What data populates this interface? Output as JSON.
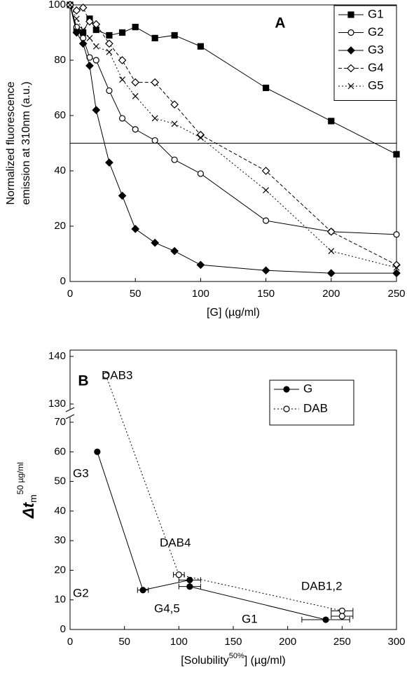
{
  "chart_data": [
    {
      "type": "line",
      "title": "A",
      "ylabel": [
        "Normalized fluorescence",
        "emission at 310nm (a.u.)"
      ],
      "xlabel": "[G] (µg/ml)",
      "x": [
        0,
        5,
        10,
        15,
        20,
        30,
        40,
        50,
        65,
        80,
        100,
        150,
        200,
        250
      ],
      "series": [
        {
          "name": "G1",
          "color": "#000000",
          "marker": "square",
          "filled": true,
          "dash": "solid",
          "values": [
            100,
            91,
            90,
            95,
            91,
            89,
            90,
            92,
            88,
            89,
            85,
            70,
            58,
            46
          ]
        },
        {
          "name": "G2",
          "color": "#000000",
          "marker": "circle",
          "filled": false,
          "dash": "solid",
          "values": [
            100,
            92,
            88,
            81,
            80,
            69,
            59,
            55,
            51,
            44,
            39,
            22,
            18,
            17
          ]
        },
        {
          "name": "G3",
          "color": "#000000",
          "marker": "diamond",
          "filled": true,
          "dash": "solid",
          "values": [
            100,
            90,
            86,
            78,
            62,
            43,
            31,
            19,
            14,
            11,
            6,
            4,
            3,
            3
          ]
        },
        {
          "name": "G4",
          "color": "#000000",
          "marker": "diamond",
          "filled": false,
          "dash": "dashed",
          "values": [
            100,
            98,
            99,
            94,
            93,
            86,
            80,
            72,
            72,
            64,
            53,
            40,
            18,
            6
          ]
        },
        {
          "name": "G5",
          "color": "#000000",
          "marker": "x",
          "filled": false,
          "dash": "dotted",
          "values": [
            100,
            95,
            91,
            88,
            85,
            83,
            73,
            67,
            59,
            57,
            52,
            33,
            11,
            5
          ]
        }
      ],
      "hline": 50,
      "xlim": [
        0,
        250
      ],
      "xticks": [
        0,
        50,
        100,
        150,
        200,
        250
      ],
      "ylim": [
        0,
        100
      ],
      "yticks": [
        0,
        20,
        40,
        60,
        80,
        100
      ],
      "legend": "upper right"
    },
    {
      "type": "line",
      "title": "B",
      "ylabel": [
        "Δt",
        "m",
        "50 µg/ml"
      ],
      "xlabel": [
        "[Solubility",
        "50%",
        "] (µg/ml)"
      ],
      "series": [
        {
          "name": "G",
          "color": "#000000",
          "marker": "circle",
          "filled": true,
          "dash": "solid",
          "x": [
            25,
            67,
            110,
            110,
            235
          ],
          "xerr": [
            null,
            5,
            10,
            10,
            22
          ],
          "values": [
            60,
            13.3,
            16.7,
            14.5,
            3.3
          ]
        },
        {
          "name": "DAB",
          "color": "#000000",
          "marker": "circle",
          "filled": false,
          "dash": "dotted",
          "x": [
            33,
            100,
            250,
            250
          ],
          "xerr": [
            null,
            5,
            10,
            10
          ],
          "values": [
            136,
            18.5,
            6.3,
            4.5
          ]
        }
      ],
      "annotations": [
        "DAB3",
        "G3",
        "G2",
        "DAB4",
        "G4,5",
        "G1",
        "DAB1,2"
      ],
      "xlim": [
        0,
        300
      ],
      "xticks": [
        0,
        50,
        100,
        150,
        200,
        250,
        300
      ],
      "ylim": [
        0,
        140
      ],
      "ybreak": [
        70,
        130
      ],
      "yticks": [
        0,
        10,
        20,
        30,
        40,
        50,
        60,
        70,
        130,
        140
      ],
      "legend": "upper right"
    }
  ]
}
